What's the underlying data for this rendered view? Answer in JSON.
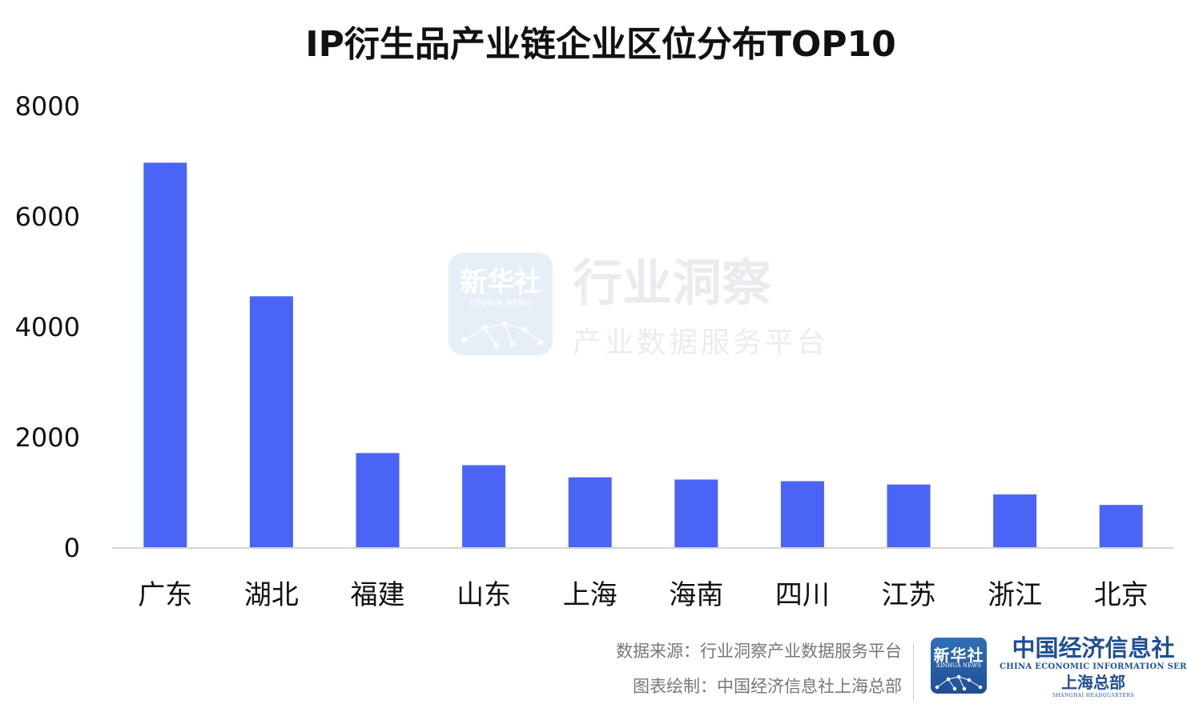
{
  "chart_data": {
    "type": "bar",
    "title": "IP衍生品产业链企业区位分布TOP10",
    "categories": [
      "广东",
      "湖北",
      "福建",
      "山东",
      "上海",
      "海南",
      "四川",
      "江苏",
      "浙江",
      "北京"
    ],
    "values": [
      6980,
      4560,
      1720,
      1500,
      1280,
      1240,
      1210,
      1150,
      970,
      780
    ],
    "ylim": [
      0,
      8000
    ],
    "yticks": [
      0,
      2000,
      4000,
      6000,
      8000
    ],
    "xlabel": "",
    "ylabel": "",
    "bar_color": "#4a64f5",
    "grid": false
  },
  "watermark": {
    "logo_text": "新华社",
    "logo_sub": "XINHUA NEWS",
    "title": "行业洞察",
    "subtitle": "产业数据服务平台"
  },
  "footer": {
    "source": "数据来源：行业洞察产业数据服务平台",
    "credit": "图表绘制：中国经济信息社上海总部",
    "xinhua_logo_text": "新华社",
    "xinhua_logo_sub": "XINHUA NEWS",
    "ceis_name": "中国经济信息社",
    "ceis_english": "CHINA ECONOMIC INFORMATION SERVICE",
    "ceis_branch": "上海总部",
    "ceis_branch_english": "SHANGHAI HEADQUARTERS"
  }
}
